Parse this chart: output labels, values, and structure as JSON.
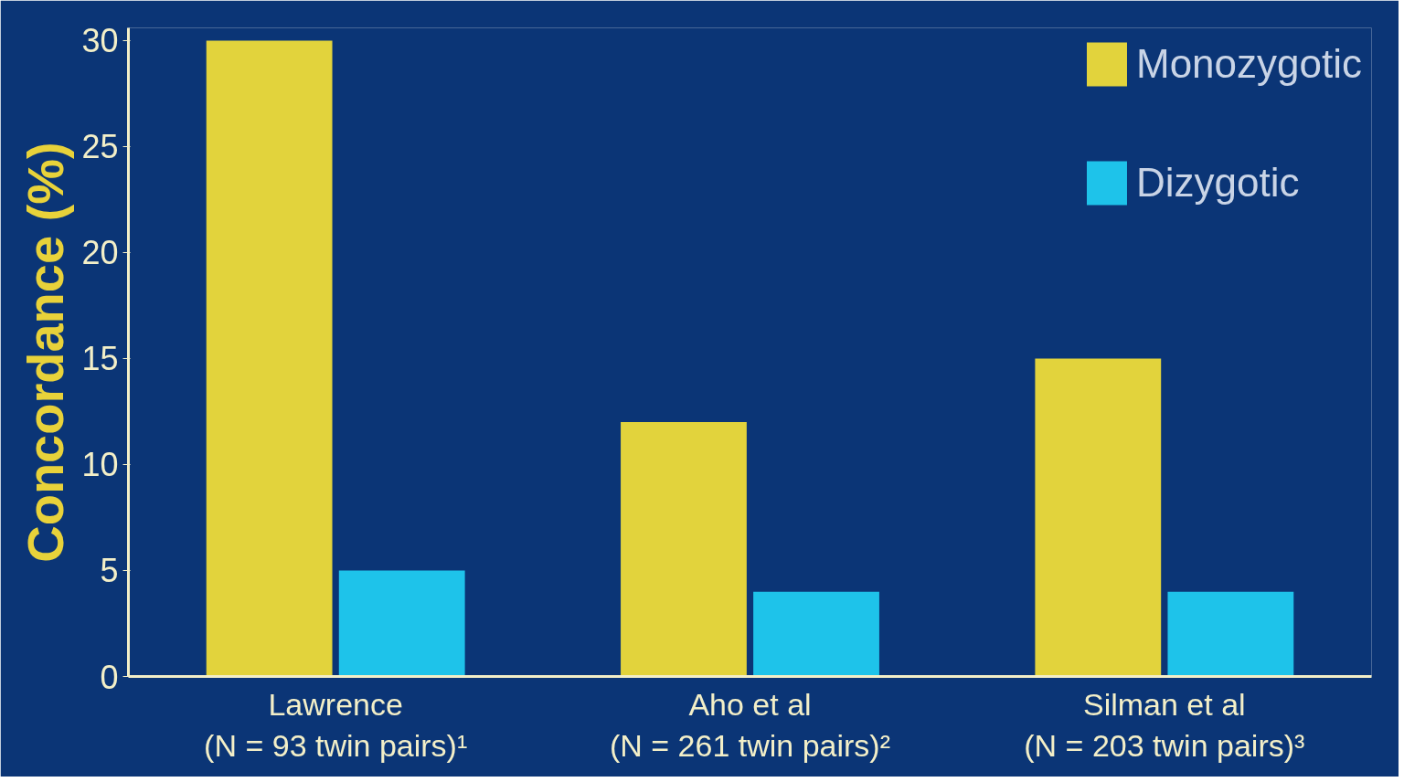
{
  "chart_data": {
    "type": "bar",
    "ylabel": "Concordance (%)",
    "categories": [
      "Lawrence\n(N = 93 twin pairs)¹",
      "Aho et al\n(N = 261 twin pairs)²",
      "Silman et al\n(N = 203 twin pairs)³"
    ],
    "series": [
      {
        "name": "Monozygotic",
        "color": "#e2d33c",
        "values": [
          30,
          12,
          15
        ]
      },
      {
        "name": "Dizygotic",
        "color": "#1ec3ea",
        "values": [
          5,
          4,
          4
        ]
      }
    ],
    "ylim": [
      0,
      30
    ],
    "yticks": [
      0,
      5,
      10,
      15,
      20,
      25,
      30
    ],
    "grid": false,
    "legend": "top right"
  }
}
